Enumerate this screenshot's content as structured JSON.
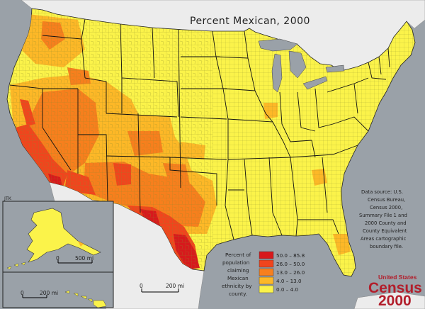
{
  "map": {
    "title": "Percent Mexican, 2000",
    "credit": "JTK",
    "colors": {
      "ocean": "#9aa1a8",
      "land_outside": "#ececec",
      "water_lakes": "#9aa1a8",
      "county_line": "#7a7a2a",
      "state_line": "#111111"
    }
  },
  "legend": {
    "label_lines": [
      "Percent of",
      "population",
      "claiming",
      "Mexican",
      "ethnicity by",
      "county."
    ],
    "classes": [
      {
        "label": "50.0 – 85.8",
        "color": "#d7191c"
      },
      {
        "label": "26.0 – 50.0",
        "color": "#f0451d"
      },
      {
        "label": "13.0 – 26.0",
        "color": "#f77f1d"
      },
      {
        "label": "4.0 – 13.0",
        "color": "#fdb827"
      },
      {
        "label": "0.0 – 4.0",
        "color": "#fbf34a"
      }
    ]
  },
  "source": {
    "lines": [
      "Data source: U.S.",
      "Census Bureau,",
      "Census 2000,",
      "Summary File 1 and",
      "2000 County and",
      "County Equivalent",
      "Areas cartographic",
      "boundary file."
    ]
  },
  "scalebars": {
    "alaska": {
      "zero": "0",
      "value": "500 mi"
    },
    "hawaii": {
      "zero": "0",
      "value": "200 mi"
    },
    "main": {
      "zero": "0",
      "value": "200 mi"
    }
  },
  "logo": {
    "top": "United States",
    "line1": "Census",
    "line2": "2000"
  }
}
